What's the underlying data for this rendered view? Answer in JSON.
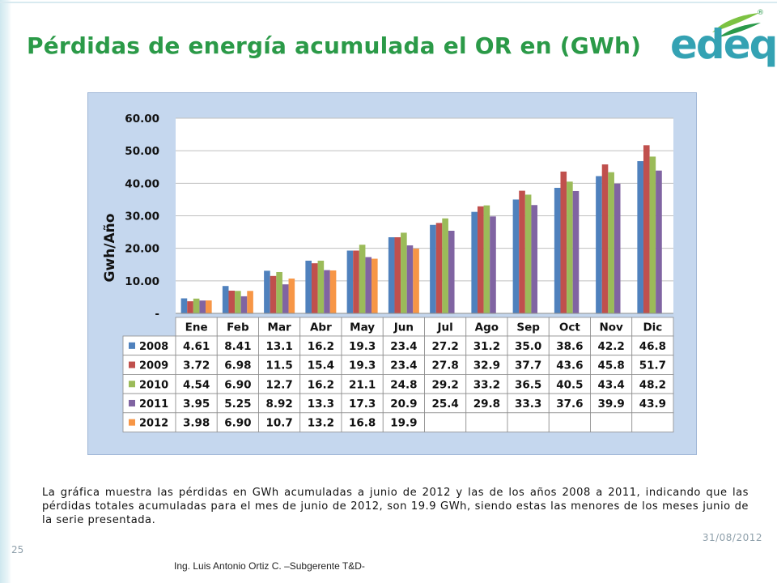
{
  "slide": {
    "title": "Pérdidas de energía acumulada el OR en (GWh)",
    "logo_text": "edeq",
    "logo_mark": "®",
    "caption": "La gráfica muestra las pérdidas en GWh acumuladas a junio de 2012 y las de los años 2008 a 2011, indicando que las pérdidas totales acumuladas para el mes de junio de 2012, son 19.9 GWh, siendo estas las menores de los meses junio de la serie presentada.",
    "date": "31/08/2012",
    "page_number": "25",
    "footer": "Ing. Luis Antonio Ortiz C. –Subgerente T&D-",
    "brand_green": "#2b9a48",
    "brand_teal": "#34a2b3"
  },
  "chart_data": {
    "type": "bar",
    "ylabel": "Gwh/Año",
    "ylim": [
      0,
      60
    ],
    "ytick_values": [
      0,
      10,
      20,
      30,
      40,
      50,
      60
    ],
    "ytick_labels": [
      "-",
      "10.00",
      "20.00",
      "30.00",
      "40.00",
      "50.00",
      "60.00"
    ],
    "grid": "horizontal",
    "legend": "data-table",
    "categories": [
      "Ene",
      "Feb",
      "Mar",
      "Abr",
      "May",
      "Jun",
      "Jul",
      "Ago",
      "Sep",
      "Oct",
      "Nov",
      "Dic"
    ],
    "series": [
      {
        "name": "2008",
        "color": "#4f81bd",
        "values": [
          4.61,
          8.41,
          13.1,
          16.2,
          19.3,
          23.4,
          27.2,
          31.2,
          35.0,
          38.6,
          42.2,
          46.8
        ],
        "labels": [
          "4.61",
          "8.41",
          "13.1",
          "16.2",
          "19.3",
          "23.4",
          "27.2",
          "31.2",
          "35.0",
          "38.6",
          "42.2",
          "46.8"
        ]
      },
      {
        "name": "2009",
        "color": "#c0504d",
        "values": [
          3.72,
          6.98,
          11.5,
          15.4,
          19.3,
          23.4,
          27.8,
          32.9,
          37.7,
          43.6,
          45.8,
          51.7
        ],
        "labels": [
          "3.72",
          "6.98",
          "11.5",
          "15.4",
          "19.3",
          "23.4",
          "27.8",
          "32.9",
          "37.7",
          "43.6",
          "45.8",
          "51.7"
        ]
      },
      {
        "name": "2010",
        "color": "#9bbb59",
        "values": [
          4.54,
          6.9,
          12.7,
          16.2,
          21.1,
          24.8,
          29.2,
          33.2,
          36.5,
          40.5,
          43.4,
          48.2
        ],
        "labels": [
          "4.54",
          "6.90",
          "12.7",
          "16.2",
          "21.1",
          "24.8",
          "29.2",
          "33.2",
          "36.5",
          "40.5",
          "43.4",
          "48.2"
        ]
      },
      {
        "name": "2011",
        "color": "#8064a2",
        "values": [
          3.95,
          5.25,
          8.92,
          13.3,
          17.3,
          20.9,
          25.4,
          29.8,
          33.3,
          37.6,
          39.9,
          43.9
        ],
        "labels": [
          "3.95",
          "5.25",
          "8.92",
          "13.3",
          "17.3",
          "20.9",
          "25.4",
          "29.8",
          "33.3",
          "37.6",
          "39.9",
          "43.9"
        ]
      },
      {
        "name": "2012",
        "color": "#f79646",
        "values": [
          3.98,
          6.9,
          10.7,
          13.2,
          16.8,
          19.9,
          null,
          null,
          null,
          null,
          null,
          null
        ],
        "labels": [
          "3.98",
          "6.90",
          "10.7",
          "13.2",
          "16.8",
          "19.9",
          "",
          "",
          "",
          "",
          "",
          ""
        ]
      }
    ]
  }
}
